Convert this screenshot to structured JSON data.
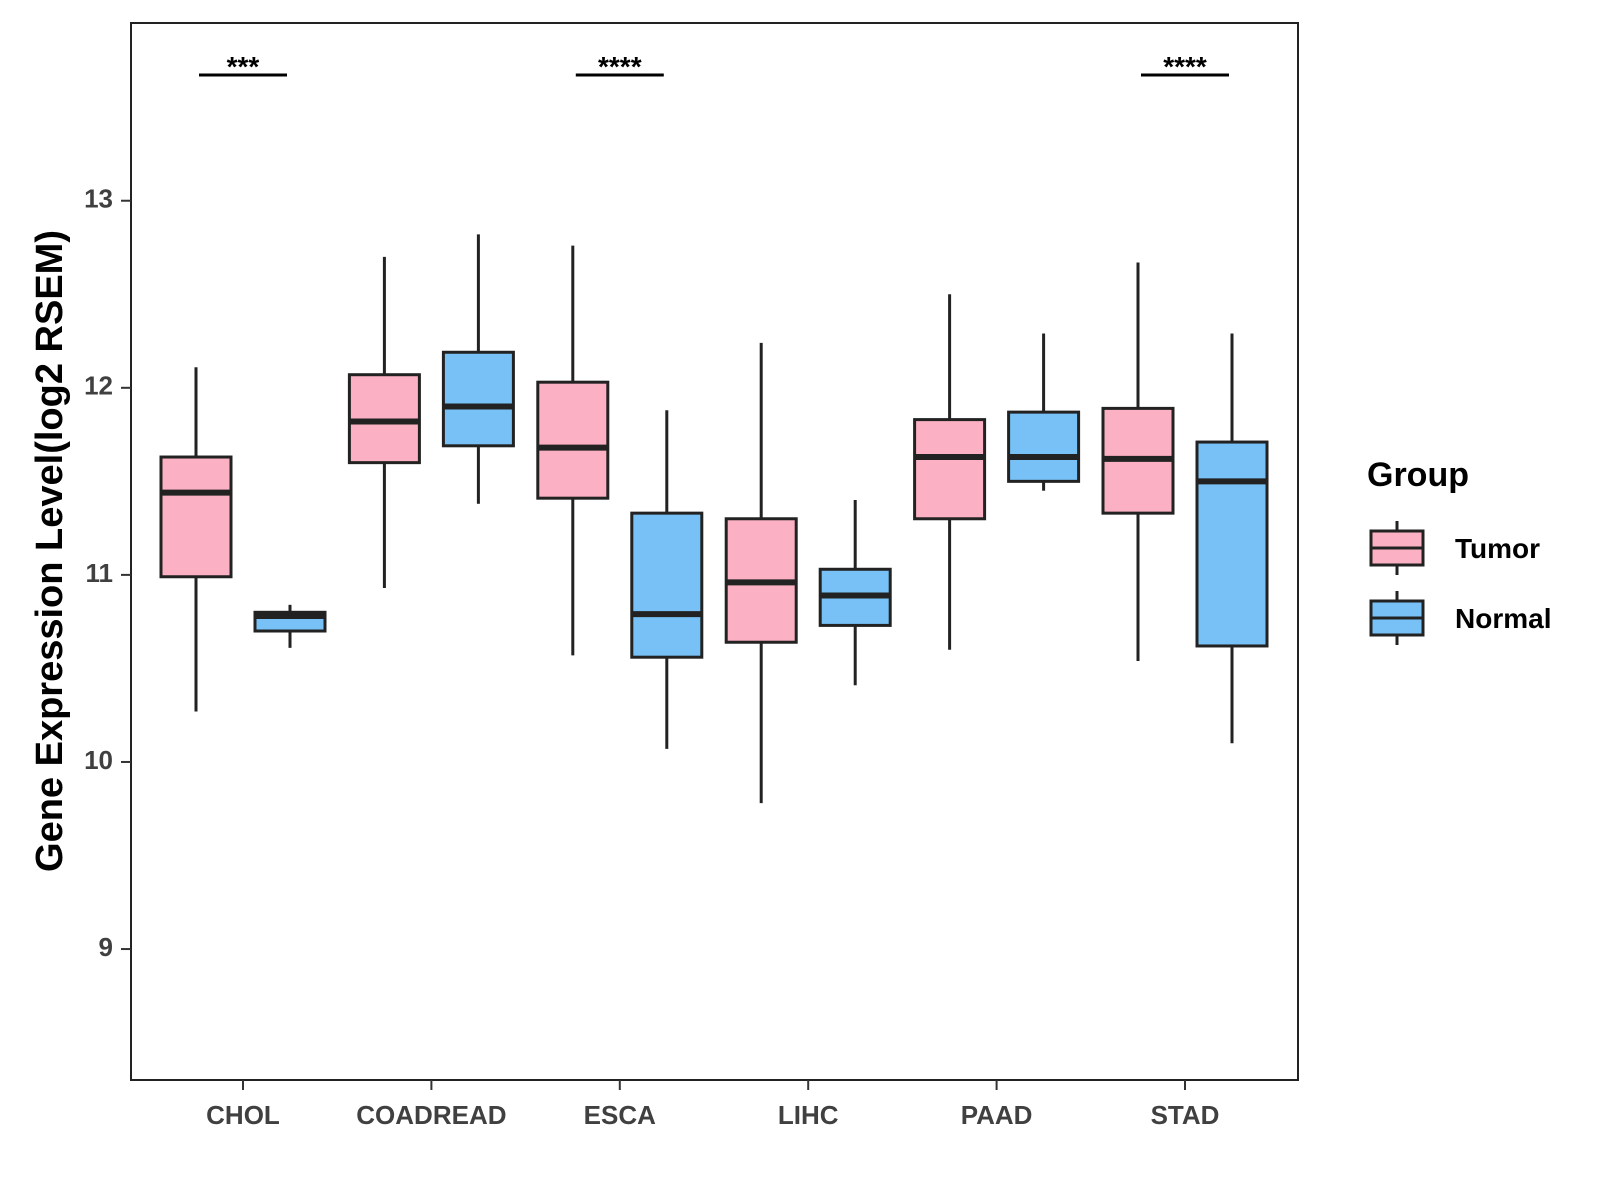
{
  "chart_data": {
    "type": "boxplot",
    "title": "",
    "xlabel": "",
    "ylabel": "Gene Expression Level(log2 RSEM)",
    "ylim": [
      8.3,
      13.95
    ],
    "yticks": [
      9,
      10,
      11,
      12,
      13
    ],
    "categories": [
      "CHOL",
      "COADREAD",
      "ESCA",
      "LIHC",
      "PAAD",
      "STAD"
    ],
    "legend": {
      "title": "Group",
      "position": "right"
    },
    "series": [
      {
        "name": "Tumor",
        "color": "#FBB1C3",
        "boxes": [
          {
            "category": "CHOL",
            "min": 10.27,
            "q1": 10.99,
            "median": 11.44,
            "q3": 11.63,
            "max": 12.11
          },
          {
            "category": "COADREAD",
            "min": 10.93,
            "q1": 11.6,
            "median": 11.82,
            "q3": 12.07,
            "max": 12.7
          },
          {
            "category": "ESCA",
            "min": 10.57,
            "q1": 11.41,
            "median": 11.68,
            "q3": 12.03,
            "max": 12.76
          },
          {
            "category": "LIHC",
            "min": 9.78,
            "q1": 10.64,
            "median": 10.96,
            "q3": 11.3,
            "max": 12.24
          },
          {
            "category": "PAAD",
            "min": 10.6,
            "q1": 11.3,
            "median": 11.63,
            "q3": 11.83,
            "max": 12.5
          },
          {
            "category": "STAD",
            "min": 10.54,
            "q1": 11.33,
            "median": 11.62,
            "q3": 11.89,
            "max": 12.67
          }
        ]
      },
      {
        "name": "Normal",
        "color": "#77C1F6",
        "boxes": [
          {
            "category": "CHOL",
            "min": 10.61,
            "q1": 10.7,
            "median": 10.78,
            "q3": 10.8,
            "max": 10.84
          },
          {
            "category": "COADREAD",
            "min": 11.38,
            "q1": 11.69,
            "median": 11.9,
            "q3": 12.19,
            "max": 12.82
          },
          {
            "category": "ESCA",
            "min": 10.07,
            "q1": 10.56,
            "median": 10.79,
            "q3": 11.33,
            "max": 11.88
          },
          {
            "category": "LIHC",
            "min": 10.41,
            "q1": 10.73,
            "median": 10.89,
            "q3": 11.03,
            "max": 11.4
          },
          {
            "category": "PAAD",
            "min": 11.45,
            "q1": 11.5,
            "median": 11.63,
            "q3": 11.87,
            "max": 12.29
          },
          {
            "category": "STAD",
            "min": 10.1,
            "q1": 10.62,
            "median": 11.5,
            "q3": 11.71,
            "max": 12.29
          }
        ]
      }
    ],
    "annotations": [
      {
        "category": "CHOL",
        "label": "***"
      },
      {
        "category": "ESCA",
        "label": "****"
      },
      {
        "category": "STAD",
        "label": "****"
      }
    ]
  }
}
